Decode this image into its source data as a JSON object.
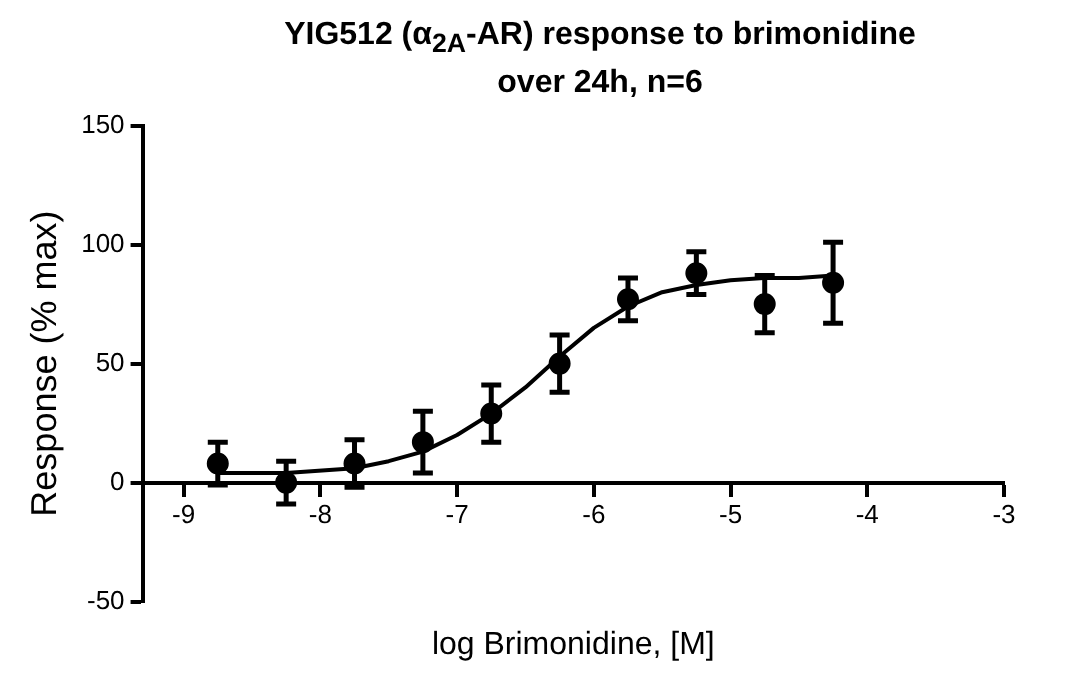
{
  "chart_data": {
    "type": "scatter",
    "title": "YIG512 (α$_{2A}$-AR) response to brimonidine\nover 24h, n=6",
    "xlabel": "log Brimonidine, [M]",
    "ylabel": "Response (% max)",
    "xlim": [
      -9.3,
      -3
    ],
    "xticks": [
      -9,
      -8,
      -7,
      -6,
      -5,
      -4,
      -3
    ],
    "ylim": [
      -50,
      150
    ],
    "yticks": [
      -50,
      0,
      50,
      100,
      150
    ],
    "grid": false,
    "legend": false,
    "series": [
      {
        "type": "scatter",
        "color": "#000000",
        "marker": "circle",
        "x": [
          -8.75,
          -8.25,
          -7.75,
          -7.25,
          -6.75,
          -6.25,
          -5.75,
          -5.25,
          -4.75,
          -4.25
        ],
        "values": [
          8,
          0,
          8,
          17,
          29,
          50,
          77,
          88,
          75,
          84
        ],
        "errors": [
          9,
          9,
          10,
          13,
          12,
          12,
          9,
          9,
          12,
          17
        ]
      },
      {
        "type": "line",
        "color": "#000000",
        "marker": "none",
        "line_style": "solid",
        "x": [
          -8.75,
          -8.25,
          -7.75,
          -7.5,
          -7.25,
          -7,
          -6.75,
          -6.5,
          -6.25,
          -6,
          -5.75,
          -5.5,
          -5.25,
          -5,
          -4.75,
          -4.5,
          -4.25
        ],
        "values": [
          4,
          4,
          6,
          9,
          13,
          20,
          29,
          40,
          53,
          65,
          74,
          80,
          83,
          85,
          86,
          86,
          87
        ]
      }
    ]
  }
}
